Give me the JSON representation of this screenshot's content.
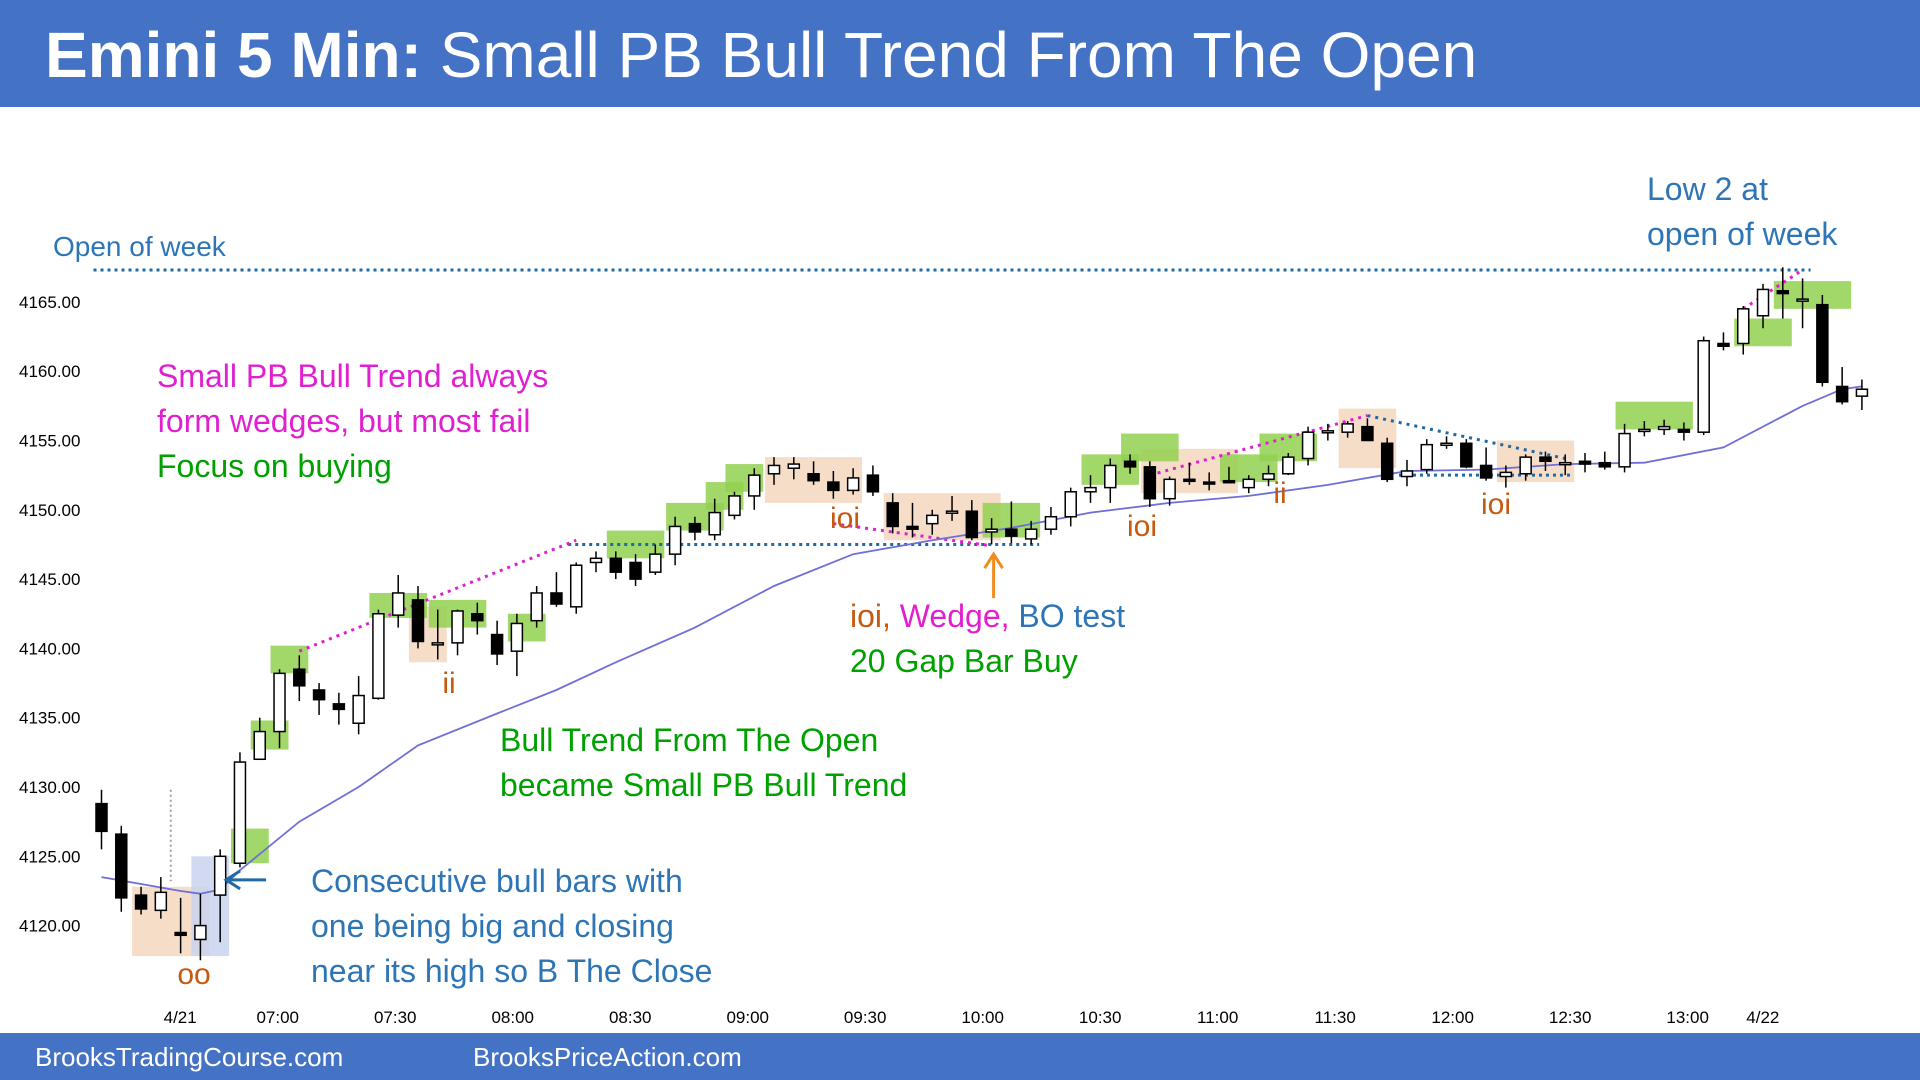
{
  "header": {
    "title_bold": "Emini 5 Min:",
    "title_rest": "Small PB Bull Trend From The Open"
  },
  "footer": {
    "left_link": "BrooksTradingCourse.com",
    "right_link": "BrooksPriceAction.com"
  },
  "colors": {
    "banner": "#4472C4",
    "bull_signal": "#92D050",
    "pattern_box": "#F4D7BE",
    "buy_box": "#C9D3EE",
    "ema": "#6F6FD8",
    "blue_text": "#2E75B6",
    "magenta": "#E020D0",
    "green_text": "#00A000",
    "orange_text": "#C55A11",
    "arrow_orange": "#F08C1E"
  },
  "chart_data": {
    "type": "candlestick",
    "ylim": [
      4117,
      4170
    ],
    "y_ticks": [
      "4120.00",
      "4125.00",
      "4130.00",
      "4135.00",
      "4140.00",
      "4145.00",
      "4150.00",
      "4155.00",
      "4160.00",
      "4165.00"
    ],
    "x_ticks": [
      "4/21",
      "07:00",
      "07:30",
      "08:00",
      "08:30",
      "09:00",
      "09:30",
      "10:00",
      "10:30",
      "11:00",
      "11:30",
      "12:00",
      "12:30",
      "13:00",
      "4/22"
    ],
    "candles": [
      [
        4128.8,
        4129.8,
        4125.5,
        4126.8
      ],
      [
        4126.6,
        4127.2,
        4121.0,
        4122.0
      ],
      [
        4122.2,
        4122.8,
        4120.8,
        4121.2
      ],
      [
        4121.1,
        4123.5,
        4120.5,
        4122.4
      ],
      [
        4119.5,
        4122.0,
        4118.0,
        4119.3
      ],
      [
        4119.0,
        4122.3,
        4117.5,
        4120.0
      ],
      [
        4122.2,
        4125.5,
        4118.8,
        4125.0
      ],
      [
        4124.5,
        4132.5,
        4124.2,
        4131.8
      ],
      [
        4132.0,
        4135.0,
        4132.0,
        4134.0
      ],
      [
        4134.0,
        4138.5,
        4132.8,
        4138.2
      ],
      [
        4138.5,
        4139.5,
        4136.2,
        4137.3
      ],
      [
        4137.0,
        4137.5,
        4135.2,
        4136.3
      ],
      [
        4136.0,
        4136.8,
        4134.5,
        4135.6
      ],
      [
        4134.6,
        4138.0,
        4133.8,
        4136.6
      ],
      [
        4136.4,
        4142.8,
        4136.3,
        4142.5
      ],
      [
        4142.4,
        4145.3,
        4141.5,
        4144.0
      ],
      [
        4143.5,
        4144.5,
        4140.0,
        4140.5
      ],
      [
        4140.3,
        4142.8,
        4139.2,
        4140.4
      ],
      [
        4140.4,
        4142.8,
        4139.5,
        4142.7
      ],
      [
        4142.5,
        4143.3,
        4141.0,
        4142.0
      ],
      [
        4141.0,
        4142.0,
        4138.8,
        4139.6
      ],
      [
        4139.8,
        4142.5,
        4138.0,
        4141.8
      ],
      [
        4142.0,
        4144.5,
        4141.5,
        4144.0
      ],
      [
        4144.0,
        4145.5,
        4143.0,
        4143.2
      ],
      [
        4143.0,
        4146.2,
        4142.5,
        4146.0
      ],
      [
        4146.2,
        4147.0,
        4145.5,
        4146.5
      ],
      [
        4146.5,
        4147.0,
        4145.0,
        4145.5
      ],
      [
        4146.2,
        4146.8,
        4144.5,
        4145.0
      ],
      [
        4145.5,
        4147.5,
        4145.3,
        4146.8
      ],
      [
        4146.8,
        4149.5,
        4146.0,
        4148.8
      ],
      [
        4149.0,
        4149.5,
        4147.8,
        4148.4
      ],
      [
        4148.2,
        4150.8,
        4147.8,
        4149.8
      ],
      [
        4149.6,
        4151.3,
        4149.3,
        4151.0
      ],
      [
        4151.0,
        4153.0,
        4150.0,
        4152.5
      ],
      [
        4152.6,
        4153.8,
        4151.8,
        4153.2
      ],
      [
        4153.0,
        4153.8,
        4152.2,
        4153.3
      ],
      [
        4152.6,
        4153.5,
        4151.8,
        4152.1
      ],
      [
        4152.0,
        4152.8,
        4150.8,
        4151.4
      ],
      [
        4151.4,
        4153.0,
        4151.1,
        4152.3
      ],
      [
        4152.5,
        4153.2,
        4151.0,
        4151.3
      ],
      [
        4150.5,
        4151.2,
        4148.3,
        4148.8
      ],
      [
        4148.8,
        4150.5,
        4148.0,
        4148.6
      ],
      [
        4149.0,
        4150.0,
        4148.2,
        4149.6
      ],
      [
        4149.8,
        4151.0,
        4149.2,
        4149.9
      ],
      [
        4149.9,
        4150.7,
        4147.8,
        4148.0
      ],
      [
        4148.4,
        4149.4,
        4147.5,
        4148.6
      ],
      [
        4148.6,
        4150.6,
        4147.6,
        4148.1
      ],
      [
        4147.9,
        4149.2,
        4147.5,
        4148.6
      ],
      [
        4148.6,
        4150.2,
        4148.2,
        4149.5
      ],
      [
        4149.5,
        4151.6,
        4148.8,
        4151.3
      ],
      [
        4151.3,
        4152.5,
        4150.5,
        4151.6
      ],
      [
        4151.6,
        4153.7,
        4150.5,
        4153.2
      ],
      [
        4153.5,
        4154.0,
        4152.6,
        4153.1
      ],
      [
        4153.1,
        4153.5,
        4150.2,
        4150.8
      ],
      [
        4150.8,
        4152.4,
        4150.3,
        4152.2
      ],
      [
        4152.2,
        4153.4,
        4151.8,
        4152.1
      ],
      [
        4152.0,
        4152.7,
        4151.4,
        4151.9
      ],
      [
        4152.1,
        4153.1,
        4151.9,
        4152.0
      ],
      [
        4151.6,
        4152.5,
        4151.2,
        4152.2
      ],
      [
        4152.2,
        4153.2,
        4151.7,
        4152.6
      ],
      [
        4152.6,
        4154.1,
        4152.5,
        4153.8
      ],
      [
        4153.7,
        4156.0,
        4153.2,
        4155.6
      ],
      [
        4155.6,
        4156.2,
        4155.0,
        4155.7
      ],
      [
        4155.6,
        4156.4,
        4155.2,
        4156.2
      ],
      [
        4156.0,
        4156.6,
        4155.0,
        4155.0
      ],
      [
        4154.8,
        4155.2,
        4152.0,
        4152.2
      ],
      [
        4152.4,
        4153.6,
        4151.7,
        4152.8
      ],
      [
        4152.9,
        4155.1,
        4152.6,
        4154.7
      ],
      [
        4154.8,
        4155.3,
        4154.4,
        4154.8
      ],
      [
        4154.8,
        4155.1,
        4153.0,
        4153.1
      ],
      [
        4153.2,
        4154.5,
        4152.1,
        4152.3
      ],
      [
        4152.4,
        4153.2,
        4151.6,
        4152.7
      ],
      [
        4152.6,
        4154.0,
        4152.1,
        4153.8
      ],
      [
        4153.8,
        4154.2,
        4152.8,
        4153.5
      ],
      [
        4153.4,
        4154.0,
        4152.5,
        4153.4
      ],
      [
        4153.5,
        4154.1,
        4152.7,
        4153.3
      ],
      [
        4153.4,
        4154.2,
        4152.9,
        4153.1
      ],
      [
        4153.1,
        4156.2,
        4152.7,
        4155.5
      ],
      [
        4155.7,
        4156.4,
        4155.3,
        4155.8
      ],
      [
        4155.8,
        4156.5,
        4155.4,
        4156.0
      ],
      [
        4155.8,
        4156.3,
        4155.0,
        4155.6
      ],
      [
        4155.6,
        4162.5,
        4155.4,
        4162.2
      ],
      [
        4162.0,
        4162.8,
        4161.5,
        4161.8
      ],
      [
        4162.0,
        4164.7,
        4161.2,
        4164.5
      ],
      [
        4164.0,
        4166.3,
        4163.1,
        4165.9
      ],
      [
        4165.8,
        4167.5,
        4163.8,
        4165.6
      ],
      [
        4165.1,
        4166.7,
        4163.1,
        4165.2
      ],
      [
        4164.8,
        4165.5,
        4158.9,
        4159.2
      ],
      [
        4158.9,
        4160.3,
        4157.6,
        4157.8
      ],
      [
        4158.2,
        4159.4,
        4157.2,
        4158.7
      ]
    ],
    "ema_20": [
      [
        0,
        4123.5
      ],
      [
        2,
        4123.0
      ],
      [
        4,
        4122.5
      ],
      [
        5,
        4122.3
      ],
      [
        6,
        4122.6
      ],
      [
        7,
        4124.0
      ],
      [
        10,
        4127.5
      ],
      [
        13,
        4130.0
      ],
      [
        16,
        4133.0
      ],
      [
        20,
        4135.3
      ],
      [
        23,
        4137.0
      ],
      [
        26,
        4139.0
      ],
      [
        30,
        4141.5
      ],
      [
        34,
        4144.5
      ],
      [
        38,
        4146.8
      ],
      [
        42,
        4147.8
      ],
      [
        46,
        4148.7
      ],
      [
        50,
        4149.8
      ],
      [
        54,
        4150.5
      ],
      [
        58,
        4151.0
      ],
      [
        62,
        4151.8
      ],
      [
        66,
        4152.8
      ],
      [
        70,
        4152.9
      ],
      [
        74,
        4153.3
      ],
      [
        78,
        4153.4
      ],
      [
        82,
        4154.5
      ],
      [
        86,
        4157.5
      ],
      [
        88,
        4158.7
      ],
      [
        89,
        4158.9
      ]
    ],
    "reference_lines": [
      {
        "name": "open-of-week",
        "from_bar": 0,
        "to_bar": 86,
        "price": 4167.3
      },
      {
        "name": "support-4147-5",
        "from_bar": 24,
        "to_bar": 47,
        "price": 4147.5
      },
      {
        "name": "range-low-4152-5",
        "from_bar": 66,
        "to_bar": 74,
        "price": 4152.5
      }
    ],
    "trend_lines": [
      {
        "name": "wedge-line-1",
        "from": [
          10,
          4139.8
        ],
        "to": [
          24,
          4147.8
        ]
      },
      {
        "name": "wedge-line-2",
        "from": [
          37,
          4149.0
        ],
        "to": [
          45,
          4147.4
        ]
      },
      {
        "name": "wedge-line-3",
        "from": [
          53,
          4152.5
        ],
        "to": [
          64,
          4156.8
        ]
      },
      {
        "name": "wedge-line-4",
        "from": [
          83,
          4164.5
        ],
        "to": [
          86,
          4167.3
        ]
      }
    ],
    "trend_lines_down": [
      {
        "name": "descending-line",
        "from": [
          64,
          4156.8
        ],
        "to": [
          74,
          4153.7
        ]
      }
    ],
    "green_boxes": [
      [
        7,
        8,
        4124.5,
        4127.0
      ],
      [
        8,
        9,
        4132.7,
        4134.8
      ],
      [
        9,
        10,
        4138.2,
        4140.2
      ],
      [
        14,
        16,
        4142.2,
        4144.0
      ],
      [
        17,
        19,
        4141.5,
        4143.5
      ],
      [
        21,
        22,
        4140.5,
        4142.5
      ],
      [
        26,
        28,
        4146.5,
        4148.5
      ],
      [
        29,
        31,
        4148.5,
        4150.5
      ],
      [
        31,
        32,
        4150.0,
        4152.0
      ],
      [
        32,
        33,
        4151.3,
        4153.3
      ],
      [
        45,
        47,
        4148.0,
        4150.5
      ],
      [
        50,
        52,
        4151.8,
        4154.0
      ],
      [
        52,
        54,
        4153.5,
        4155.5
      ],
      [
        57,
        59,
        4152.0,
        4154.0
      ],
      [
        59,
        61,
        4153.5,
        4155.5
      ],
      [
        77,
        80,
        4155.8,
        4157.8
      ],
      [
        83,
        85,
        4161.8,
        4163.8
      ],
      [
        85,
        88,
        4164.5,
        4166.5
      ]
    ],
    "brown_boxes": [
      [
        2,
        5,
        4117.8,
        4122.8
      ],
      [
        16,
        17,
        4139.0,
        4143.0
      ],
      [
        34,
        38,
        4150.5,
        4153.8
      ],
      [
        40,
        45,
        4147.8,
        4151.2
      ],
      [
        53,
        57,
        4151.2,
        4154.4
      ],
      [
        63,
        65,
        4153.0,
        4157.3
      ],
      [
        71,
        74,
        4152.0,
        4155.0
      ]
    ],
    "blue_boxes": [
      [
        5,
        6,
        4117.8,
        4125.0
      ]
    ],
    "arrows": [
      {
        "name": "buy-close-arrow",
        "bar": 6.3,
        "price": 4123.3,
        "direction": "left"
      },
      {
        "name": "gap-bar-arrow",
        "bar": 45,
        "price": 4146.8,
        "direction": "up"
      }
    ],
    "annotations": {
      "open_of_week": "Open of week",
      "low2_line1": "Low 2 at",
      "low2_line2": "open of week",
      "wedges_line1": "Small PB Bull Trend always",
      "wedges_line2": "form wedges, but most fail",
      "wedges_line3": "Focus on buying",
      "ioi_word": "ioi,",
      "wedge_word": "Wedge,",
      "bo_test": "BO test",
      "gap_bar_buy": "20 Gap Bar Buy",
      "bull_trend_line1": "Bull Trend From The Open",
      "bull_trend_line2": "became Small PB Bull Trend",
      "consecutive_line1": "Consecutive bull bars with",
      "consecutive_line2": "one being big and closing",
      "consecutive_line3": "near its high so B The Close",
      "tag_oo": "oo",
      "tag_ii_1": "ii",
      "tag_ioi_1": "ioi",
      "tag_ioi_2": "ioi",
      "tag_ii_2": "ii",
      "tag_ioi_3": "ioi"
    }
  }
}
